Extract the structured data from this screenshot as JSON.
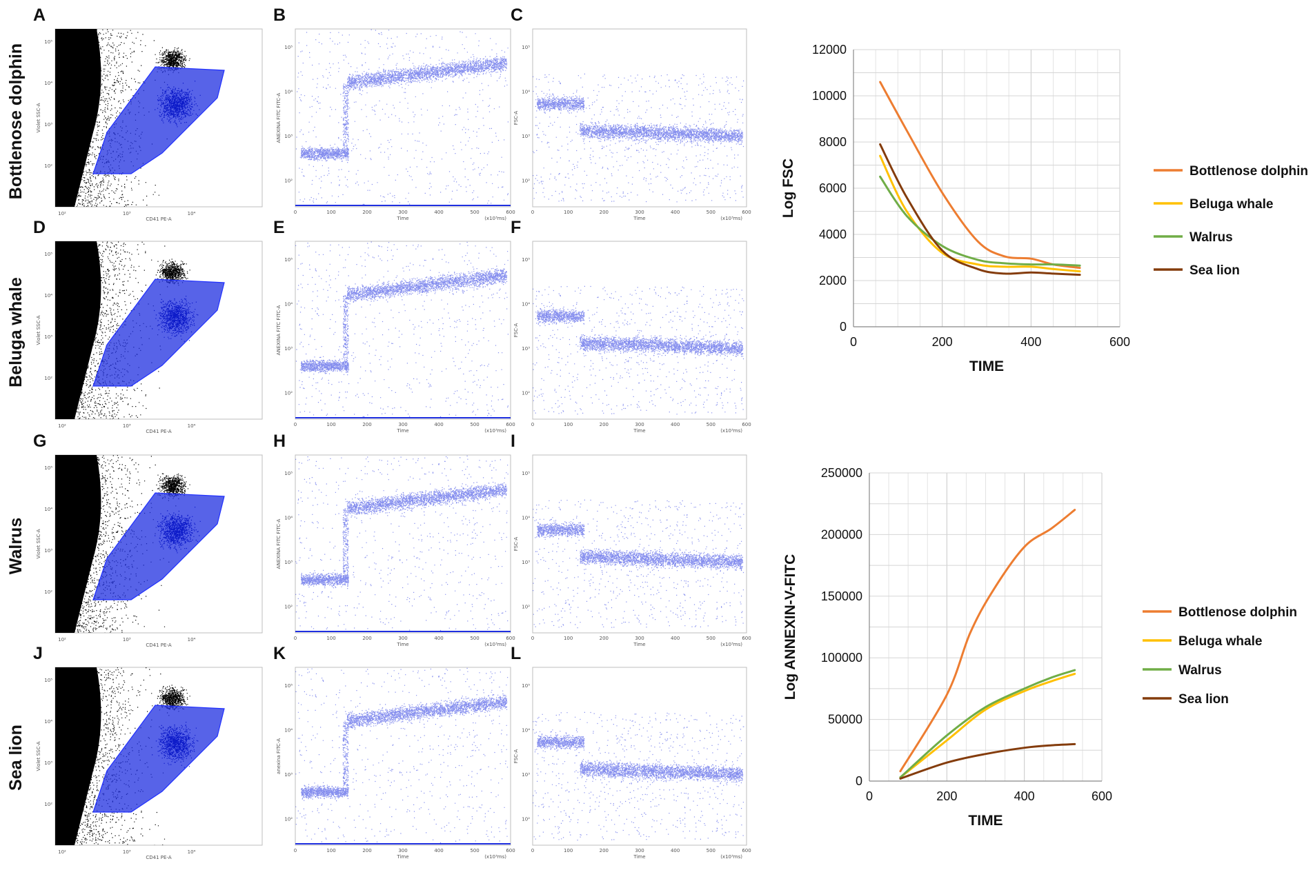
{
  "panel_letters": [
    "A",
    "B",
    "C",
    "D",
    "E",
    "F",
    "G",
    "H",
    "I",
    "J",
    "K",
    "L"
  ],
  "row_labels": [
    "Bottlenose dolphin",
    "Beluga whale",
    "Walrus",
    "Sea lion"
  ],
  "flow_axis_text": {
    "cd41_y": "Violet SSC-A",
    "cd41_x": "CD41 PE-A",
    "annexin_y": "ANEXINA FITC FITC-A",
    "annexin_y_sealion": "anexina FITC-A",
    "fsc_y": "FSC-A",
    "time_x": "Time",
    "time_unit": "(x10³ms)",
    "log_ticks": [
      "10²",
      "10³",
      "10⁴",
      "10⁵"
    ],
    "time_ticks": [
      "0",
      "100",
      "200",
      "300",
      "400",
      "500",
      "600"
    ]
  },
  "colors": {
    "Bottlenose dolphin": "#ED7D31",
    "Beluga whale": "#FFC000",
    "Walrus": "#70AD47",
    "Sea lion": "#843C0C",
    "scatter_blue": "#1f2fe0",
    "scatter_black": "#000000"
  },
  "chart_data": [
    {
      "type": "line",
      "xlabel": "TIME",
      "ylabel": "Log FSC",
      "xlim": [
        0,
        600
      ],
      "ylim": [
        0,
        12000
      ],
      "xticks": [
        0,
        200,
        400,
        600
      ],
      "yticks": [
        0,
        2000,
        4000,
        6000,
        8000,
        10000,
        12000
      ],
      "grid": true,
      "legend_position": "right",
      "series": [
        {
          "name": "Bottlenose dolphin",
          "x": [
            60,
            120,
            200,
            280,
            340,
            400,
            450,
            510
          ],
          "y": [
            10600,
            8500,
            5800,
            3700,
            3050,
            2950,
            2700,
            2550
          ]
        },
        {
          "name": "Beluga whale",
          "x": [
            60,
            120,
            200,
            280,
            340,
            400,
            450,
            510
          ],
          "y": [
            7400,
            5000,
            3200,
            2700,
            2600,
            2600,
            2500,
            2400
          ]
        },
        {
          "name": "Walrus",
          "x": [
            60,
            120,
            200,
            280,
            340,
            400,
            450,
            510
          ],
          "y": [
            6500,
            4800,
            3500,
            2900,
            2750,
            2700,
            2700,
            2650
          ]
        },
        {
          "name": "Sea lion",
          "x": [
            60,
            120,
            200,
            280,
            340,
            400,
            450,
            510
          ],
          "y": [
            7900,
            5600,
            3300,
            2500,
            2300,
            2350,
            2300,
            2250
          ]
        }
      ]
    },
    {
      "type": "line",
      "xlabel": "TIME",
      "ylabel": "Log ANNEXIN-V-FITC",
      "xlim": [
        0,
        600
      ],
      "ylim": [
        0,
        250000
      ],
      "xticks": [
        0,
        200,
        400,
        600
      ],
      "yticks": [
        0,
        50000,
        100000,
        150000,
        200000,
        250000
      ],
      "grid": true,
      "legend_position": "right",
      "series": [
        {
          "name": "Bottlenose dolphin",
          "x": [
            80,
            200,
            260,
            320,
            400,
            470,
            530
          ],
          "y": [
            8000,
            70000,
            120000,
            155000,
            190000,
            205000,
            220000
          ]
        },
        {
          "name": "Beluga whale",
          "x": [
            80,
            200,
            300,
            400,
            470,
            530
          ],
          "y": [
            3000,
            33000,
            58000,
            73000,
            81000,
            87000
          ]
        },
        {
          "name": "Walrus",
          "x": [
            80,
            200,
            300,
            400,
            470,
            530
          ],
          "y": [
            3000,
            37000,
            60000,
            75000,
            84000,
            90000
          ]
        },
        {
          "name": "Sea lion",
          "x": [
            80,
            200,
            300,
            400,
            470,
            530
          ],
          "y": [
            2000,
            15000,
            22000,
            27000,
            29000,
            30000
          ]
        }
      ]
    }
  ]
}
